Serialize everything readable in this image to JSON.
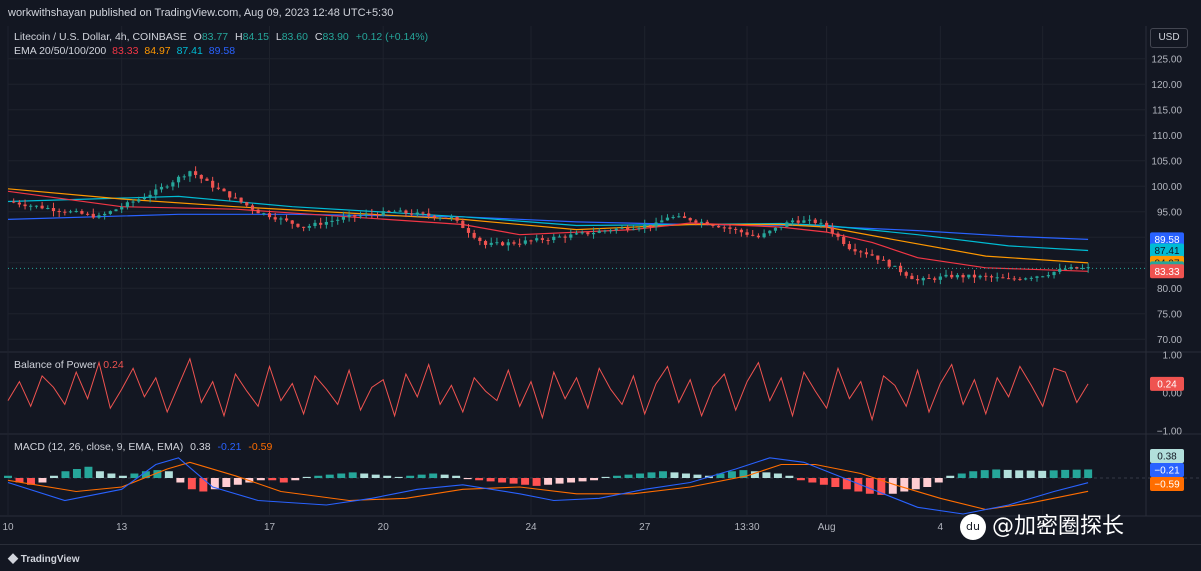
{
  "header": {
    "publisher": "workwithshayan published on TradingView.com, Aug 09, 2023 12:48 UTC+5:30"
  },
  "currency_button": "USD",
  "legend": {
    "symbol": "Litecoin / U.S. Dollar, 4h, COINBASE",
    "o_label": "O",
    "o": "83.77",
    "h_label": "H",
    "h": "84.15",
    "l_label": "L",
    "l": "83.60",
    "c_label": "C",
    "c": "83.90",
    "change": "+0.12 (+0.14%)",
    "ema_label": "EMA 20/50/100/200",
    "ema20": "83.33",
    "ema50": "84.97",
    "ema100": "87.41",
    "ema200": "89.58",
    "bop_label": "Balance of Power",
    "bop": "0.24",
    "macd_label": "MACD (12, 26, close, 9, EMA, EMA)",
    "macd_hist": "0.38",
    "macd_line": "-0.21",
    "macd_signal": "-0.59"
  },
  "colors": {
    "up": "#26a69a",
    "down": "#ef5350",
    "ema20": "#f23645",
    "ema50": "#ff9800",
    "ema100": "#00bcd4",
    "ema200": "#2962ff",
    "bop": "#ef5350",
    "macd_line": "#2962ff",
    "macd_signal": "#ff6d00",
    "grid": "#2a2e39",
    "text": "#b2b5be"
  },
  "footer": {
    "logo": "TradingView"
  },
  "watermark": {
    "icon": "du",
    "text": "@加密圈探长"
  },
  "chart_data": [
    {
      "type": "candlestick",
      "title": "Litecoin / U.S. Dollar, 4h, COINBASE",
      "x_ticks": [
        "10",
        "13",
        "17",
        "20",
        "24",
        "27",
        "13:30",
        "Aug",
        "4",
        "7"
      ],
      "y_ticks": [
        "125.00",
        "120.00",
        "115.00",
        "110.00",
        "105.00",
        "100.00",
        "95.00",
        "90.00",
        "85.00",
        "80.00",
        "75.00",
        "70.00"
      ],
      "ylim": [
        67.5,
        127.5
      ],
      "price_path": [
        [
          0,
          97
        ],
        [
          8,
          94
        ],
        [
          13,
          99
        ],
        [
          16,
          103
        ],
        [
          18,
          100
        ],
        [
          22,
          95
        ],
        [
          26,
          92
        ],
        [
          30,
          94
        ],
        [
          34,
          95
        ],
        [
          39,
          93.8
        ],
        [
          42,
          88.5
        ],
        [
          45,
          89
        ],
        [
          51,
          90.8
        ],
        [
          53,
          91.5
        ],
        [
          57,
          92.5
        ],
        [
          58,
          94
        ],
        [
          60,
          93.5
        ],
        [
          63,
          92
        ],
        [
          66,
          90
        ],
        [
          69,
          93.3
        ],
        [
          71,
          93
        ],
        [
          72,
          92
        ],
        [
          73,
          90
        ],
        [
          74,
          88
        ],
        [
          76,
          86.5
        ],
        [
          78,
          84
        ],
        [
          80,
          81.5
        ],
        [
          83,
          82.4
        ],
        [
          86,
          82.2
        ],
        [
          88,
          81.7
        ],
        [
          91,
          82.6
        ],
        [
          93,
          83.8
        ],
        [
          95,
          83.9
        ]
      ],
      "ema20": [
        [
          0,
          99
        ],
        [
          10,
          96
        ],
        [
          20,
          95.5
        ],
        [
          40,
          92.5
        ],
        [
          45,
          90.5
        ],
        [
          55,
          91.5
        ],
        [
          60,
          92.8
        ],
        [
          68,
          92
        ],
        [
          72,
          91
        ],
        [
          76,
          89
        ],
        [
          80,
          86
        ],
        [
          86,
          84
        ],
        [
          95,
          83.33
        ]
      ],
      "ema50": [
        [
          0,
          99.5
        ],
        [
          10,
          97.5
        ],
        [
          20,
          96
        ],
        [
          40,
          93.5
        ],
        [
          50,
          91.5
        ],
        [
          60,
          92.5
        ],
        [
          68,
          92.5
        ],
        [
          72,
          92
        ],
        [
          78,
          89.5
        ],
        [
          86,
          86.3
        ],
        [
          95,
          84.97
        ]
      ],
      "ema100": [
        [
          0,
          97
        ],
        [
          15,
          98
        ],
        [
          25,
          96
        ],
        [
          40,
          94
        ],
        [
          50,
          92.3
        ],
        [
          60,
          92.5
        ],
        [
          68,
          92.7
        ],
        [
          72,
          92.3
        ],
        [
          80,
          90.5
        ],
        [
          88,
          88.3
        ],
        [
          95,
          87.41
        ]
      ],
      "ema200": [
        [
          0,
          93.5
        ],
        [
          15,
          94.5
        ],
        [
          25,
          94.5
        ],
        [
          40,
          94
        ],
        [
          50,
          93
        ],
        [
          60,
          92.5
        ],
        [
          70,
          92.3
        ],
        [
          80,
          91.3
        ],
        [
          88,
          90.2
        ],
        [
          95,
          89.58
        ]
      ],
      "last_price": 83.9,
      "price_labels": [
        "89.58",
        "87.41",
        "84.97",
        "83.90",
        "83.33"
      ]
    },
    {
      "type": "line",
      "title": "Balance of Power",
      "y_ticks": [
        "1.00",
        "0.00",
        "−1.00"
      ],
      "ylim": [
        -1,
        1
      ],
      "last": 0.24,
      "values": [
        -0.2,
        0.3,
        -0.35,
        0.45,
        0.15,
        -0.3,
        0.55,
        -0.15,
        0.8,
        -0.4,
        0.1,
        0.65,
        -0.1,
        0.4,
        -0.5,
        0.2,
        0.9,
        -0.25,
        0.3,
        -0.6,
        0.5,
        0.05,
        -0.35,
        0.7,
        -0.2,
        0.25,
        -0.55,
        0.45,
        0.1,
        -0.3,
        0.6,
        -0.45,
        0.15,
        0.35,
        -0.6,
        0.5,
        -0.1,
        0.75,
        -0.3,
        0.2,
        -0.5,
        0.4,
        0.05,
        -0.2,
        0.6,
        -0.35,
        0.3,
        -0.65,
        0.55,
        -0.15,
        0.4,
        -0.4,
        0.65,
        0.1,
        -0.3,
        0.45,
        -0.55,
        0.25,
        0.7,
        -0.25,
        0.35,
        -0.6,
        0.15,
        0.5,
        -0.45,
        0.3,
        0.8,
        -0.2,
        0.4,
        -0.6,
        0.55,
        0.05,
        -0.4,
        0.65,
        -0.15,
        0.3,
        -0.7,
        0.45,
        0.2,
        -0.35,
        0.6,
        -0.5,
        0.25,
        0.75,
        -0.3,
        0.35,
        -0.55,
        0.4,
        -0.1,
        0.7,
        0.2,
        -0.35,
        0.65,
        0.55,
        -0.25,
        0.24
      ]
    },
    {
      "type": "bar",
      "title": "MACD (12, 26, close, 9, EMA, EMA)",
      "ylim": [
        -1.6,
        1.6
      ],
      "macd_line": [
        [
          0,
          -0.2
        ],
        [
          5,
          -1.0
        ],
        [
          10,
          -0.5
        ],
        [
          13,
          0.6
        ],
        [
          15,
          0.9
        ],
        [
          18,
          -0.4
        ],
        [
          22,
          -1.0
        ],
        [
          28,
          -1.2
        ],
        [
          32,
          -0.9
        ],
        [
          36,
          -0.5
        ],
        [
          40,
          -0.3
        ],
        [
          45,
          -0.7
        ],
        [
          48,
          -1.0
        ],
        [
          52,
          -0.9
        ],
        [
          56,
          -0.5
        ],
        [
          60,
          -0.2
        ],
        [
          64,
          0.4
        ],
        [
          67,
          0.9
        ],
        [
          70,
          0.7
        ],
        [
          73,
          0.1
        ],
        [
          76,
          -0.5
        ],
        [
          80,
          -1.3
        ],
        [
          84,
          -1.6
        ],
        [
          88,
          -1.2
        ],
        [
          92,
          -0.6
        ],
        [
          95,
          -0.21
        ]
      ],
      "signal_line": [
        [
          0,
          -0.1
        ],
        [
          6,
          -0.6
        ],
        [
          10,
          -0.4
        ],
        [
          14,
          0.4
        ],
        [
          16,
          0.7
        ],
        [
          20,
          0.1
        ],
        [
          24,
          -0.6
        ],
        [
          30,
          -1.0
        ],
        [
          35,
          -0.9
        ],
        [
          40,
          -0.5
        ],
        [
          45,
          -0.4
        ],
        [
          50,
          -0.7
        ],
        [
          55,
          -0.7
        ],
        [
          60,
          -0.4
        ],
        [
          65,
          0.1
        ],
        [
          68,
          0.6
        ],
        [
          71,
          0.6
        ],
        [
          75,
          0.2
        ],
        [
          78,
          -0.3
        ],
        [
          82,
          -0.9
        ],
        [
          86,
          -1.4
        ],
        [
          90,
          -1.1
        ],
        [
          95,
          -0.59
        ]
      ],
      "histogram": [
        0.1,
        -0.2,
        -0.3,
        -0.2,
        0.1,
        0.3,
        0.4,
        0.5,
        0.3,
        0.2,
        0.1,
        0.2,
        0.3,
        0.35,
        0.3,
        -0.2,
        -0.5,
        -0.6,
        -0.5,
        -0.4,
        -0.3,
        -0.2,
        -0.1,
        -0.1,
        -0.2,
        -0.1,
        0.05,
        0.1,
        0.15,
        0.2,
        0.25,
        0.2,
        0.15,
        0.1,
        0.05,
        0.1,
        0.15,
        0.2,
        0.15,
        0.1,
        -0.05,
        -0.1,
        -0.15,
        -0.2,
        -0.25,
        -0.3,
        -0.35,
        -0.3,
        -0.25,
        -0.2,
        -0.15,
        -0.1,
        0.05,
        0.1,
        0.15,
        0.2,
        0.25,
        0.3,
        0.25,
        0.2,
        0.15,
        0.1,
        0.2,
        0.3,
        0.35,
        0.3,
        0.25,
        0.2,
        0.1,
        -0.1,
        -0.2,
        -0.3,
        -0.4,
        -0.5,
        -0.6,
        -0.7,
        -0.75,
        -0.7,
        -0.6,
        -0.5,
        -0.4,
        -0.2,
        0.1,
        0.2,
        0.3,
        0.35,
        0.38,
        0.36,
        0.34,
        0.33,
        0.32,
        0.34,
        0.36,
        0.37,
        0.38
      ],
      "labels": [
        "0.38",
        "−0.21",
        "−0.59"
      ]
    }
  ]
}
